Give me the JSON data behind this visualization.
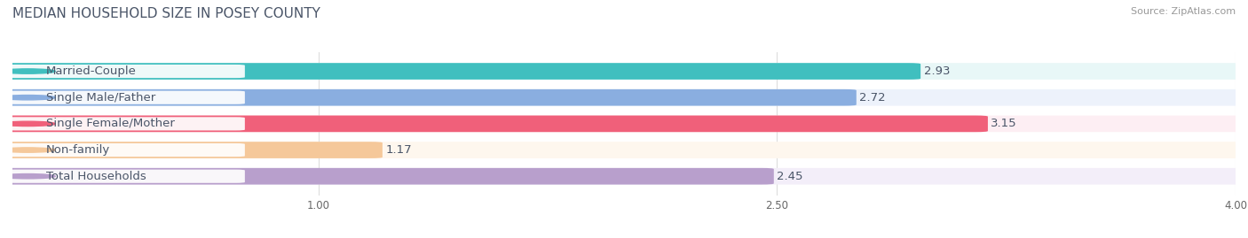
{
  "title": "MEDIAN HOUSEHOLD SIZE IN POSEY COUNTY",
  "source": "Source: ZipAtlas.com",
  "categories": [
    "Married-Couple",
    "Single Male/Father",
    "Single Female/Mother",
    "Non-family",
    "Total Households"
  ],
  "values": [
    2.93,
    2.72,
    3.15,
    1.17,
    2.45
  ],
  "bar_colors": [
    "#40bfbf",
    "#8aaee0",
    "#f0607a",
    "#f5c89a",
    "#b89fcc"
  ],
  "bar_bg_colors": [
    "#e8f7f7",
    "#edf2fb",
    "#fdeef3",
    "#fef7ee",
    "#f3eef9"
  ],
  "xlim": [
    0,
    4.0
  ],
  "xstart": 0.0,
  "xticks": [
    1.0,
    2.5,
    4.0
  ],
  "label_fontsize": 9.5,
  "value_fontsize": 9.5,
  "title_fontsize": 11,
  "source_fontsize": 8,
  "bar_height": 0.55,
  "bg_color": "#ffffff",
  "title_color": "#4a5568"
}
